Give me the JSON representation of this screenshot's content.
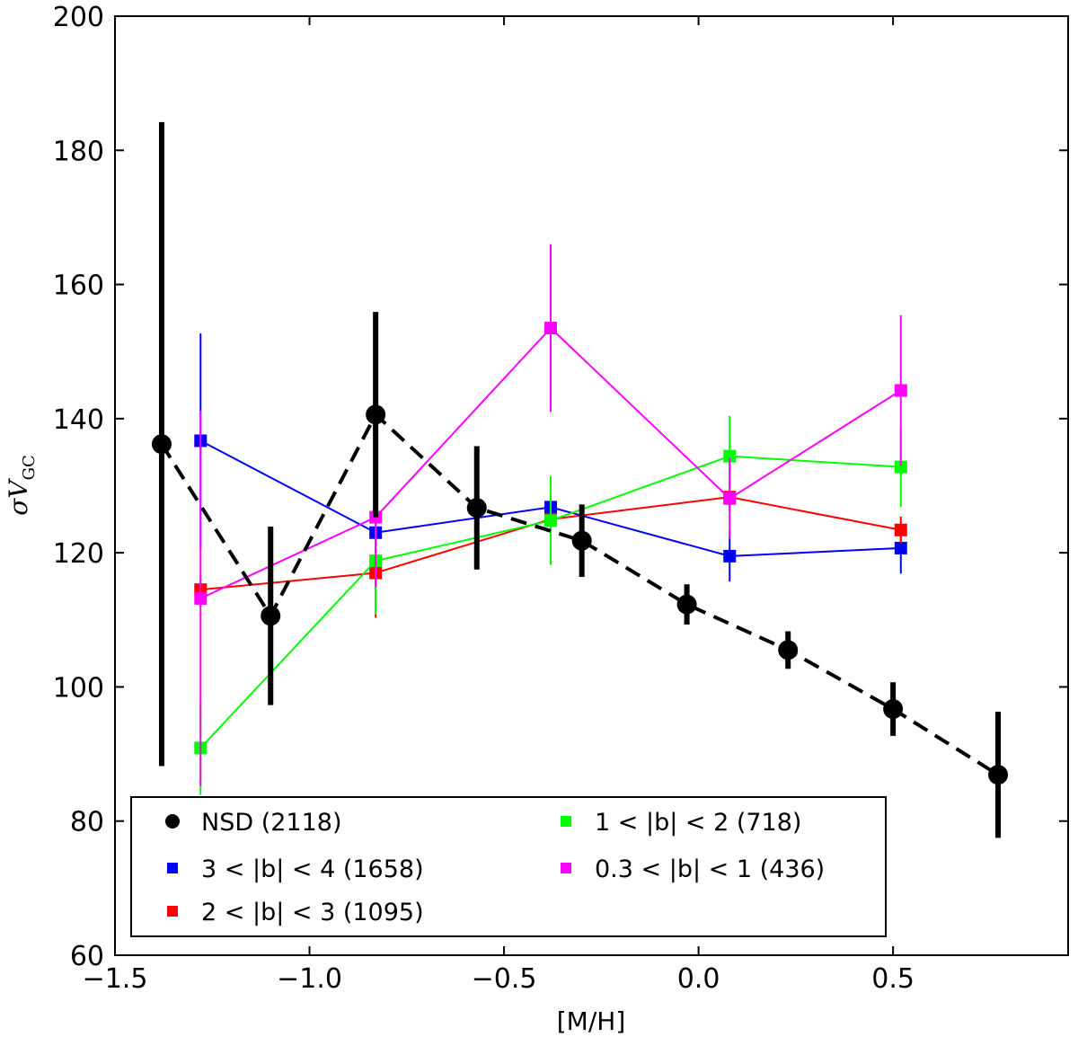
{
  "chart_data": {
    "type": "scatter",
    "title": "",
    "xlabel": "[M/H]",
    "ylabel_main": "σV",
    "ylabel_sub": "GC",
    "xlim": [
      -1.5,
      0.95
    ],
    "ylim": [
      60,
      200
    ],
    "xticks": [
      -1.5,
      -1.0,
      -0.5,
      0.0,
      0.5
    ],
    "xtick_labels": [
      "−1.5",
      "−1.0",
      "−0.5",
      "0.0",
      "0.5"
    ],
    "yticks": [
      60,
      80,
      100,
      120,
      140,
      160,
      180,
      200
    ],
    "ytick_labels": [
      "60",
      "80",
      "100",
      "120",
      "140",
      "160",
      "180",
      "200"
    ],
    "legend_position": "lower-left",
    "series": [
      {
        "name": "NSD (2118)",
        "color": "#000000",
        "marker": "circle",
        "line": "dashed",
        "points": [
          {
            "x": -1.38,
            "y": 136.2,
            "err": 48.0
          },
          {
            "x": -1.1,
            "y": 110.6,
            "err": 13.3
          },
          {
            "x": -0.83,
            "y": 140.6,
            "err": 15.3
          },
          {
            "x": -0.57,
            "y": 126.7,
            "err": 9.2
          },
          {
            "x": -0.3,
            "y": 121.8,
            "err": 5.4
          },
          {
            "x": -0.03,
            "y": 112.3,
            "err": 3.0
          },
          {
            "x": 0.23,
            "y": 105.5,
            "err": 2.8
          },
          {
            "x": 0.5,
            "y": 96.7,
            "err": 4.0
          },
          {
            "x": 0.77,
            "y": 86.9,
            "err": 9.4
          }
        ]
      },
      {
        "name": "3 < |b| < 4 (1658)",
        "color": "#0000ff",
        "marker": "square",
        "line": "solid",
        "points": [
          {
            "x": -1.28,
            "y": 136.7,
            "err": 16.0
          },
          {
            "x": -0.83,
            "y": 123.0,
            "err": 2.0
          },
          {
            "x": -0.38,
            "y": 126.8,
            "err": 2.0
          },
          {
            "x": 0.08,
            "y": 119.5,
            "err": 3.8
          },
          {
            "x": 0.52,
            "y": 120.7,
            "err": 3.8
          }
        ]
      },
      {
        "name": "2 < |b| < 3 (1095)",
        "color": "#ff0000",
        "marker": "square",
        "line": "solid",
        "points": [
          {
            "x": -1.28,
            "y": 114.5,
            "err": 2.0
          },
          {
            "x": -0.83,
            "y": 117.0,
            "err": 6.7
          },
          {
            "x": -0.38,
            "y": 125.0,
            "err": 2.0
          },
          {
            "x": 0.08,
            "y": 128.3,
            "err": 2.0
          },
          {
            "x": 0.52,
            "y": 123.4,
            "err": 2.0
          }
        ]
      },
      {
        "name": "1 < |b| < 2 (718)",
        "color": "#00ff00",
        "marker": "square",
        "line": "solid",
        "points": [
          {
            "x": -1.28,
            "y": 90.9,
            "err": 7.0
          },
          {
            "x": -0.83,
            "y": 118.8,
            "err": 8.0
          },
          {
            "x": -0.38,
            "y": 124.8,
            "err": 6.6
          },
          {
            "x": 0.08,
            "y": 134.4,
            "err": 6.0
          },
          {
            "x": 0.52,
            "y": 132.8,
            "err": 6.0
          }
        ]
      },
      {
        "name": "0.3 < |b| < 1 (436)",
        "color": "#ff00ff",
        "marker": "square",
        "line": "solid",
        "points": [
          {
            "x": -1.28,
            "y": 113.2,
            "err": 28.0
          },
          {
            "x": -0.83,
            "y": 125.3,
            "err": 10.5
          },
          {
            "x": -0.38,
            "y": 153.5,
            "err": 12.5
          },
          {
            "x": 0.08,
            "y": 128.1,
            "err": 6.0
          },
          {
            "x": 0.52,
            "y": 144.2,
            "err": 11.2
          }
        ]
      }
    ]
  }
}
